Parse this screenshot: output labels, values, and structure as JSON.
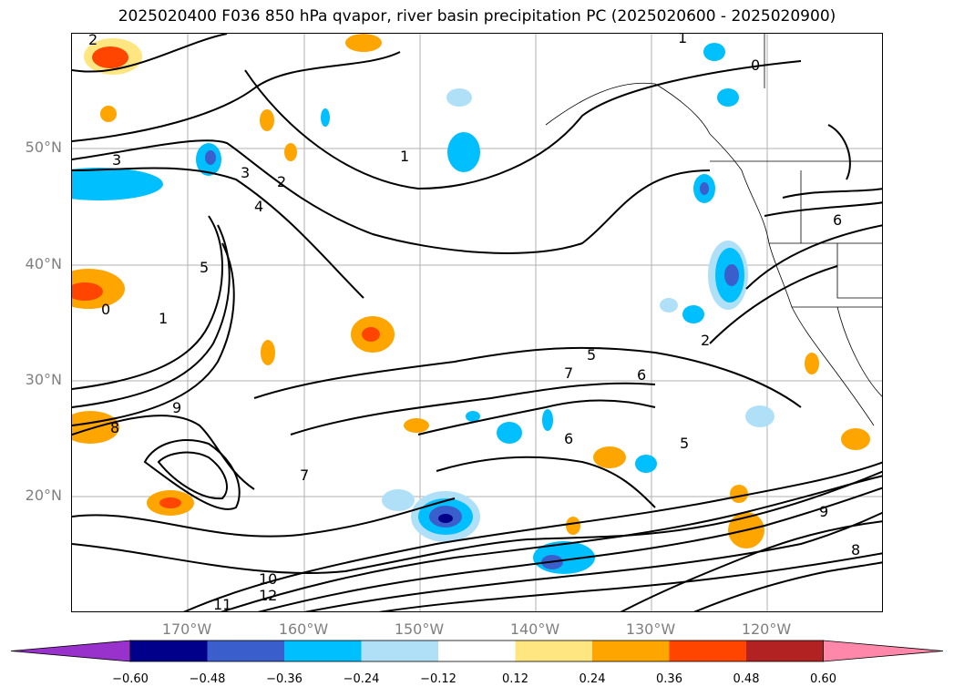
{
  "title": "2025020400 F036 850 hPa qvapor, river basin precipitation PC (2025020600 - 2025020900)",
  "lat_labels": [
    "50°N",
    "40°N",
    "30°N",
    "20°N"
  ],
  "lon_labels": [
    "170°W",
    "160°W",
    "150°W",
    "140°W",
    "130°W",
    "120°W"
  ],
  "colorbar": {
    "colors": [
      "#9932cc",
      "#00008b",
      "#3a5fcd",
      "#00bfff",
      "#b0e0f8",
      "#ffffff",
      "#ffe680",
      "#ffa500",
      "#ff4500",
      "#b22222",
      "#ff88aa"
    ],
    "ticks": [
      "−0.60",
      "−0.48",
      "−0.36",
      "−0.24",
      "−0.12",
      "0.12",
      "0.24",
      "0.36",
      "0.48",
      "0.60"
    ]
  },
  "contour_labels": [
    "2",
    "3",
    "4",
    "5",
    "1",
    "0",
    "1",
    "2",
    "3",
    "6",
    "7",
    "8",
    "9",
    "6",
    "5",
    "10",
    "12",
    "11",
    "9",
    "8",
    "0",
    "1",
    "2",
    "5",
    "6",
    "7"
  ]
}
